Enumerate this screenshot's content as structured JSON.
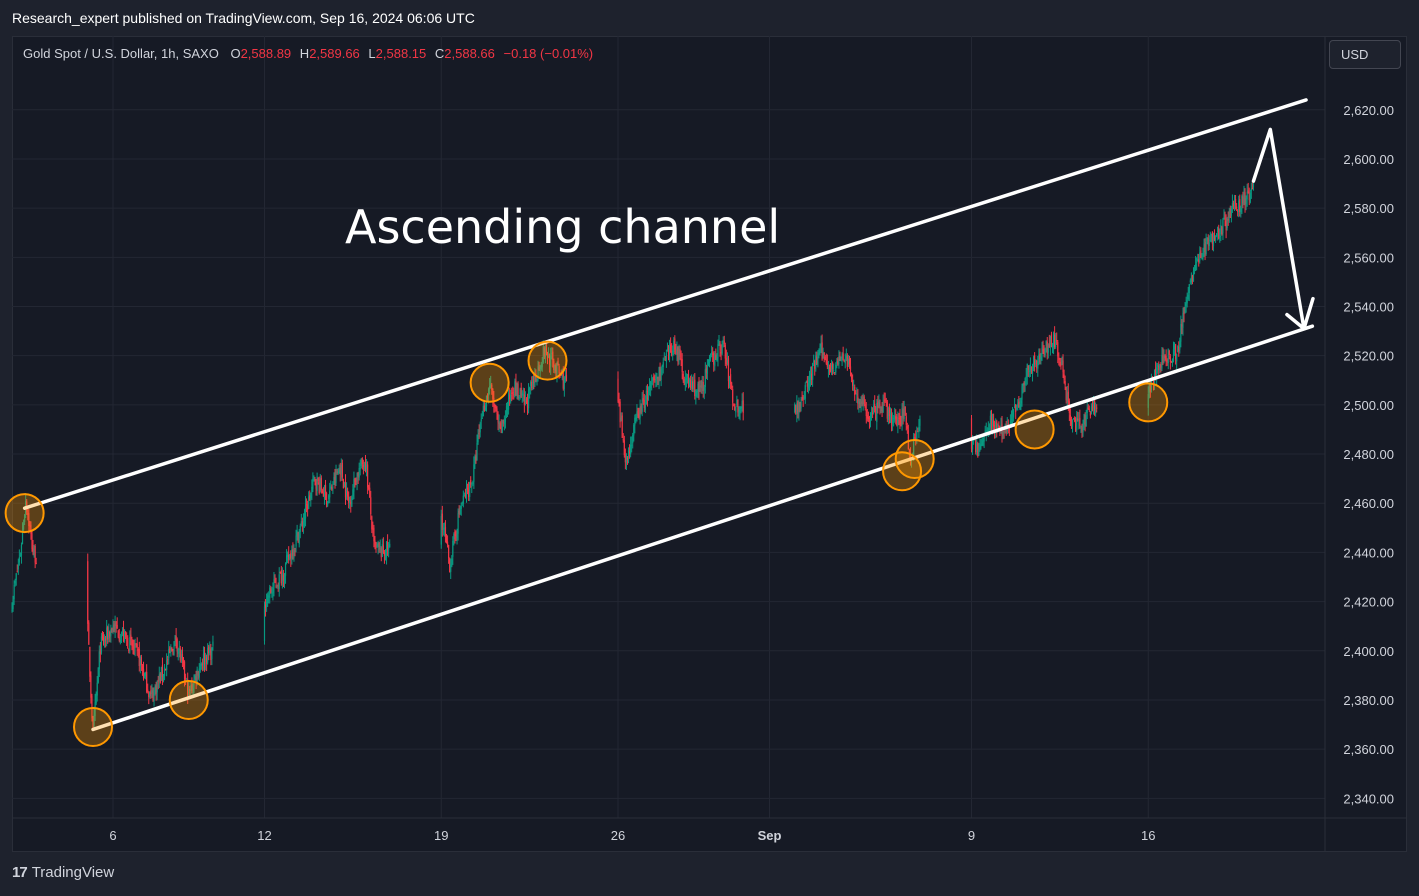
{
  "header": {
    "published_by": "Research_expert published on TradingView.com, Sep 16, 2024 06:06 UTC"
  },
  "legend": {
    "symbol": "Gold Spot / U.S. Dollar, 1h, SAXO",
    "o_label": "O",
    "o_value": "2,588.89",
    "h_label": "H",
    "h_value": "2,589.66",
    "l_label": "L",
    "l_value": "2,588.15",
    "c_label": "C",
    "c_value": "2,588.66",
    "change": "−0.18 (−0.01%)"
  },
  "currency_button": "USD",
  "footer": {
    "brand": "TradingView",
    "logo_text": "17"
  },
  "colors": {
    "background": "#161a25",
    "up": "#089981",
    "down": "#f23645",
    "touch_marker": "#ff9800",
    "annotation": "#ffffff"
  },
  "chart_data": {
    "type": "candlestick",
    "title": "Gold Spot / U.S. Dollar, 1h, SAXO",
    "annotation": "Ascending channel",
    "x_tick_labels": [
      "6",
      "12",
      "19",
      "26",
      "Sep",
      "9",
      "16"
    ],
    "y_tick_labels": [
      "2,620.00",
      "2,600.00",
      "2,580.00",
      "2,560.00",
      "2,540.00",
      "2,520.00",
      "2,500.00",
      "2,480.00",
      "2,460.00",
      "2,440.00",
      "2,420.00",
      "2,400.00",
      "2,380.00",
      "2,360.00",
      "2,340.00"
    ],
    "ylim": [
      2332,
      2650
    ],
    "xlim": [
      "2024-08-02",
      "2024-09-23"
    ],
    "grid": true,
    "price_path": [
      [
        "2024-08-02T00:00",
        2420
      ],
      [
        "2024-08-02T08:00",
        2440
      ],
      [
        "2024-08-02T13:00",
        2462
      ],
      [
        "2024-08-02T20:00",
        2440
      ],
      [
        "2024-08-05T00:00",
        2408
      ],
      [
        "2024-08-05T05:00",
        2366
      ],
      [
        "2024-08-05T12:00",
        2402
      ],
      [
        "2024-08-06T00:00",
        2410
      ],
      [
        "2024-08-06T12:00",
        2405
      ],
      [
        "2024-08-07T00:00",
        2398
      ],
      [
        "2024-08-07T12:00",
        2381
      ],
      [
        "2024-08-08T00:00",
        2392
      ],
      [
        "2024-08-08T12:00",
        2405
      ],
      [
        "2024-08-09T00:00",
        2382
      ],
      [
        "2024-08-09T12:00",
        2396
      ],
      [
        "2024-08-12T00:00",
        2420
      ],
      [
        "2024-08-12T18:00",
        2432
      ],
      [
        "2024-08-13T12:00",
        2452
      ],
      [
        "2024-08-14T00:00",
        2470
      ],
      [
        "2024-08-14T12:00",
        2462
      ],
      [
        "2024-08-15T00:00",
        2475
      ],
      [
        "2024-08-15T08:00",
        2460
      ],
      [
        "2024-08-15T16:00",
        2472
      ],
      [
        "2024-08-16T00:00",
        2478
      ],
      [
        "2024-08-16T08:00",
        2442
      ],
      [
        "2024-08-16T16:00",
        2440
      ],
      [
        "2024-08-19T00:00",
        2455
      ],
      [
        "2024-08-19T08:00",
        2435
      ],
      [
        "2024-08-19T18:00",
        2458
      ],
      [
        "2024-08-20T06:00",
        2470
      ],
      [
        "2024-08-20T14:00",
        2495
      ],
      [
        "2024-08-20T22:00",
        2508
      ],
      [
        "2024-08-21T08:00",
        2488
      ],
      [
        "2024-08-21T20:00",
        2508
      ],
      [
        "2024-08-22T08:00",
        2500
      ],
      [
        "2024-08-22T18:00",
        2512
      ],
      [
        "2024-08-23T02:00",
        2522
      ],
      [
        "2024-08-23T12:00",
        2516
      ],
      [
        "2024-08-23T20:00",
        2510
      ],
      [
        "2024-08-26T00:00",
        2500
      ],
      [
        "2024-08-26T08:00",
        2477
      ],
      [
        "2024-08-26T18:00",
        2495
      ],
      [
        "2024-08-27T06:00",
        2506
      ],
      [
        "2024-08-27T18:00",
        2515
      ],
      [
        "2024-08-28T06:00",
        2525
      ],
      [
        "2024-08-28T16:00",
        2510
      ],
      [
        "2024-08-29T06:00",
        2505
      ],
      [
        "2024-08-29T16:00",
        2518
      ],
      [
        "2024-08-30T04:00",
        2525
      ],
      [
        "2024-08-30T14:00",
        2500
      ],
      [
        "2024-09-02T00:00",
        2498
      ],
      [
        "2024-09-02T12:00",
        2508
      ],
      [
        "2024-09-03T00:00",
        2522
      ],
      [
        "2024-09-03T12:00",
        2515
      ],
      [
        "2024-09-04T00:00",
        2520
      ],
      [
        "2024-09-04T12:00",
        2502
      ],
      [
        "2024-09-05T00:00",
        2495
      ],
      [
        "2024-09-05T12:00",
        2500
      ],
      [
        "2024-09-06T00:00",
        2492
      ],
      [
        "2024-09-06T08:00",
        2498
      ],
      [
        "2024-09-06T14:00",
        2478
      ],
      [
        "2024-09-06T22:00",
        2494
      ],
      [
        "2024-09-09T06:00",
        2482
      ],
      [
        "2024-09-09T18:00",
        2494
      ],
      [
        "2024-09-10T06:00",
        2488
      ],
      [
        "2024-09-10T18:00",
        2498
      ],
      [
        "2024-09-11T06:00",
        2515
      ],
      [
        "2024-09-11T18:00",
        2520
      ],
      [
        "2024-09-12T06:00",
        2528
      ],
      [
        "2024-09-12T14:00",
        2515
      ],
      [
        "2024-09-12T22:00",
        2495
      ],
      [
        "2024-09-13T08:00",
        2490
      ],
      [
        "2024-09-13T18:00",
        2500
      ],
      [
        "2024-09-16T00:00",
        2505
      ],
      [
        "2024-09-16T08:00",
        2514
      ],
      [
        "2024-09-16T18:00",
        2520
      ],
      [
        "2024-09-17T04:00",
        2522
      ],
      [
        "2024-09-17T14:00",
        2548
      ],
      [
        "2024-09-18T00:00",
        2560
      ],
      [
        "2024-09-18T12:00",
        2568
      ],
      [
        "2024-09-19T00:00",
        2573
      ],
      [
        "2024-09-19T10:00",
        2580
      ],
      [
        "2024-09-19T20:00",
        2584
      ],
      [
        "2024-09-20T04:00",
        2588.66
      ]
    ],
    "channel": {
      "upper": [
        [
          "2024-08-02T12:00",
          2458
        ],
        [
          "2024-09-22T06:00",
          2624
        ]
      ],
      "lower": [
        [
          "2024-08-05T05:00",
          2368
        ],
        [
          "2024-09-22T12:00",
          2532
        ]
      ]
    },
    "forecast_arrow": [
      [
        "2024-09-20T04:00",
        2591
      ],
      [
        "2024-09-20T20:00",
        2612
      ],
      [
        "2024-09-22T04:00",
        2531
      ]
    ],
    "touch_points": [
      [
        "2024-08-02T12:00",
        2456
      ],
      [
        "2024-08-05T05:00",
        2369
      ],
      [
        "2024-08-09T00:00",
        2380
      ],
      [
        "2024-08-20T22:00",
        2509
      ],
      [
        "2024-08-23T05:00",
        2518
      ],
      [
        "2024-09-06T06:00",
        2473
      ],
      [
        "2024-09-06T18:00",
        2478
      ],
      [
        "2024-09-11T12:00",
        2490
      ],
      [
        "2024-09-16T00:00",
        2501
      ]
    ]
  }
}
